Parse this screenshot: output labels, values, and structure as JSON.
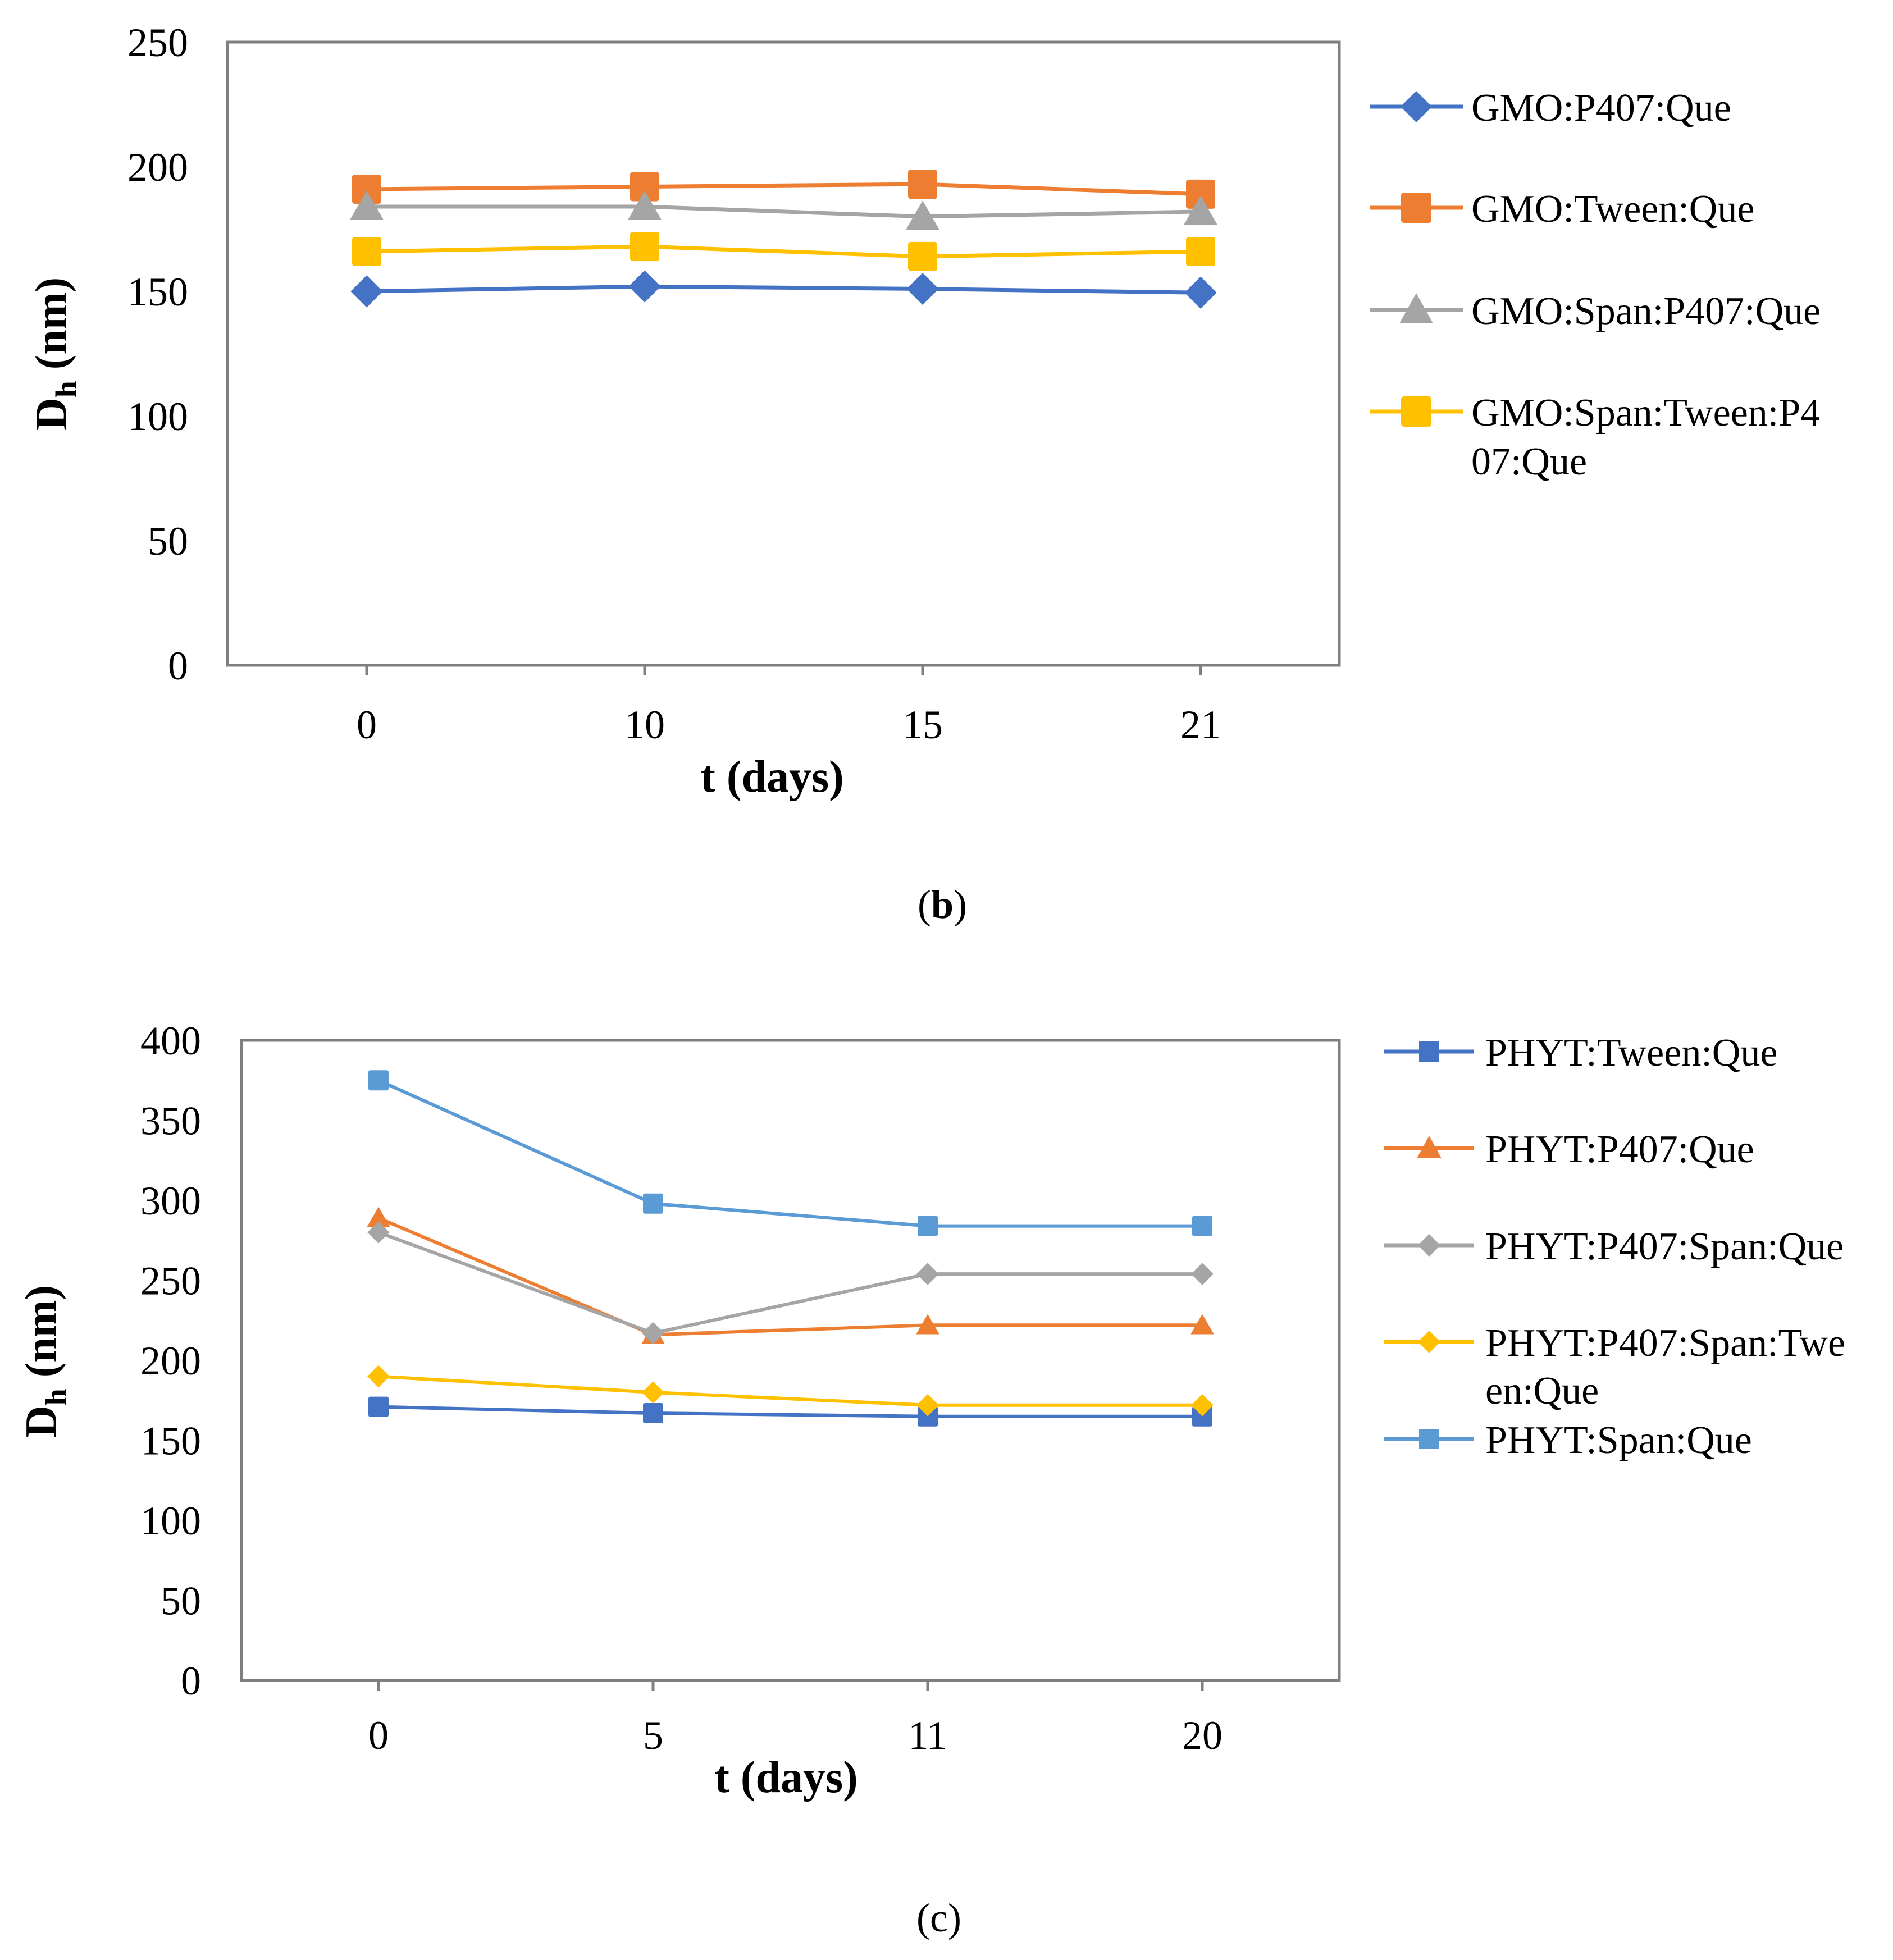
{
  "chart_data": [
    {
      "type": "line",
      "panel_label": "b",
      "xlabel": "t (days)",
      "ylabel_main": "D",
      "ylabel_sub": "h",
      "ylabel_unit": "(nm)",
      "categories": [
        "0",
        "10",
        "15",
        "21"
      ],
      "ylim": [
        0,
        250
      ],
      "yticks": [
        "0",
        "50",
        "100",
        "150",
        "200",
        "250"
      ],
      "legend_position": "right",
      "series": [
        {
          "name": "GMO:P407:Que",
          "legend_lines": [
            "GMO:P407:Que"
          ],
          "color": "#4472C4",
          "marker": "diamond",
          "values": [
            150,
            152,
            151,
            149.5
          ]
        },
        {
          "name": "GMO:Tween:Que",
          "legend_lines": [
            "GMO:Tween:Que"
          ],
          "color": "#ED7D31",
          "marker": "square",
          "values": [
            191,
            192,
            193,
            189
          ]
        },
        {
          "name": "GMO:Span:P407:Que",
          "legend_lines": [
            "GMO:Span:P407:Que"
          ],
          "color": "#A5A5A5",
          "marker": "triangle",
          "values": [
            184,
            184,
            180,
            182
          ]
        },
        {
          "name": "GMO:Span:Tween:P407:Que",
          "legend_lines": [
            "GMO:Span:Tween:P4",
            "07:Que"
          ],
          "color": "#FFC000",
          "marker": "square",
          "values": [
            166,
            168,
            164,
            166
          ]
        }
      ]
    },
    {
      "type": "line",
      "panel_label": "c",
      "xlabel": "t (days)",
      "ylabel_main": "D",
      "ylabel_sub": "h",
      "ylabel_unit": "(nm)",
      "categories": [
        "0",
        "5",
        "11",
        "20"
      ],
      "ylim": [
        0,
        400
      ],
      "yticks": [
        "0",
        "50",
        "100",
        "150",
        "200",
        "250",
        "300",
        "350",
        "400"
      ],
      "legend_position": "right",
      "series": [
        {
          "name": "PHYT:Tween:Que",
          "legend_lines": [
            "PHYT:Tween:Que"
          ],
          "color": "#4472C4",
          "marker": "square",
          "values": [
            171,
            167,
            165,
            165
          ]
        },
        {
          "name": "PHYT:P407:Que",
          "legend_lines": [
            "PHYT:P407:Que"
          ],
          "color": "#ED7D31",
          "marker": "triangle",
          "values": [
            289,
            216,
            222,
            222
          ]
        },
        {
          "name": "PHYT:P407:Span:Que",
          "legend_lines": [
            "PHYT:P407:Span:Que"
          ],
          "color": "#A5A5A5",
          "marker": "diamond",
          "values": [
            280,
            217,
            254,
            254
          ]
        },
        {
          "name": "PHYT:P407:Span:Tween:Que",
          "legend_lines": [
            "PHYT:P407:Span:Twe",
            "en:Que"
          ],
          "color": "#FFC000",
          "marker": "diamond",
          "values": [
            190,
            180,
            172,
            172
          ]
        },
        {
          "name": "PHYT:Span:Que",
          "legend_lines": [
            "PHYT:Span:Que"
          ],
          "color": "#5B9BD5",
          "marker": "square",
          "values": [
            375,
            298,
            284,
            284
          ]
        }
      ]
    }
  ]
}
